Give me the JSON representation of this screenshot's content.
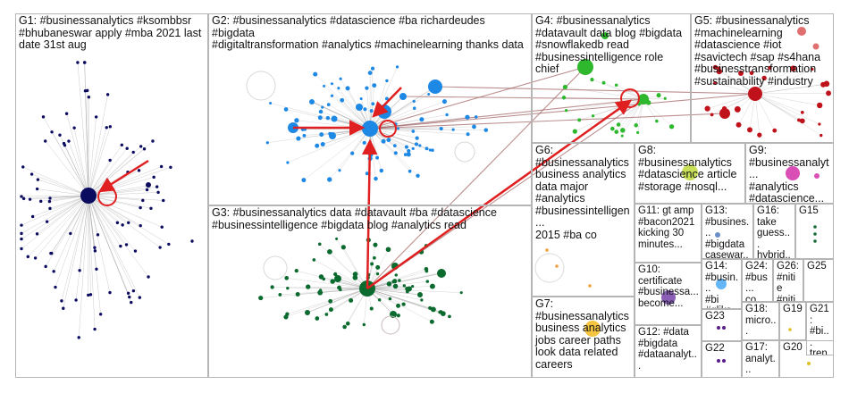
{
  "groups": [
    {
      "id": "G1",
      "label": "G1: #businessanalytics #ksombbsr\n#bhubaneswar apply #mba 2021 last\ndate 31st aug"
    },
    {
      "id": "G2",
      "label": "G2: #businessanalytics #datascience #ba richardeudes #bigdata\n#digitaltransformation #analytics #machinelearning thanks data"
    },
    {
      "id": "G3",
      "label": "G3: #businessanalytics data #datavault #ba #datascience\n#businessintelligence #bigdata blog #analytics read"
    },
    {
      "id": "G4",
      "label": "G4: #businessanalytics\n#datavault data blog #bigdata\n#snowflakedb read\n#businessintelligence role chief"
    },
    {
      "id": "G5",
      "label": "G5: #businessanalytics\n#machinelearning\n#datascience #iot\n#savictech #sap #s4hana\n#businesstransformation\n#sustainability #industry"
    },
    {
      "id": "G6",
      "label": "G6:\n#businessanalytics\nbusiness analytics\ndata major\n#analytics\n#businessintelligen...\n2015 #ba co"
    },
    {
      "id": "G7",
      "label": "G7:\n#businessanalytics\nbusiness analytics\njobs career paths\nlook data related\ncareers"
    },
    {
      "id": "G8",
      "label": "G8:\n#businessanalytics\n#datascience article\n#storage #nosql..."
    },
    {
      "id": "G9",
      "label": "G9:\n#businessanalyt...\n#analytics\n#datascience..."
    },
    {
      "id": "G10",
      "label": "G10:\ncertificate\n#businessa...\nbecome..."
    },
    {
      "id": "G11",
      "label": "G11: gt amp\n#bacon2021\nkicking 30\nminutes..."
    },
    {
      "id": "G12",
      "label": "G12: #data\n#bigdata\n#dataanalyt..."
    },
    {
      "id": "G13",
      "label": "G13:\n#busines...\n#bigdata\ncasewar..."
    },
    {
      "id": "G14",
      "label": "G14:\n#busin...\n#bi\n#qliks..."
    },
    {
      "id": "G15",
      "label": "G15"
    },
    {
      "id": "G16",
      "label": "G16:\ntake\nguess...\nhybrid..."
    },
    {
      "id": "G17",
      "label": "G17:\nanalyt..."
    },
    {
      "id": "G18",
      "label": "G18:\nmicro..."
    },
    {
      "id": "G19",
      "label": "G19"
    },
    {
      "id": "G20",
      "label": "G20"
    },
    {
      "id": "G21",
      "label": "G21:\n#bi...\ntren..."
    },
    {
      "id": "G22",
      "label": "G22"
    },
    {
      "id": "G23",
      "label": "G23"
    },
    {
      "id": "G24",
      "label": "G24:\n#bus...\nco..."
    },
    {
      "id": "G25",
      "label": "G25"
    },
    {
      "id": "G26",
      "label": "G26:\n#nitie\n#niti..."
    }
  ],
  "colors": {
    "G1": "#0b0b60",
    "G2": "#1e88e5",
    "G3": "#0b6b2e",
    "G4": "#2db82d",
    "G5": "#c0121a",
    "G6": "#f0a040",
    "G7": "#f5c542",
    "G8": "#c8e05a",
    "G9": "#d94fb5",
    "G10": "#8a5fb5",
    "G13": "#6a8fc8",
    "G14": "#64b5f6",
    "G15": "#1b6b35",
    "G19": "#e0c020",
    "G20": "#e0c020",
    "G22": "#5a1a8a",
    "G23": "#5a1a8a",
    "cross_edge": "#e02020",
    "edge": "#9a9a9a",
    "panel_border": "#b5b5b5"
  }
}
